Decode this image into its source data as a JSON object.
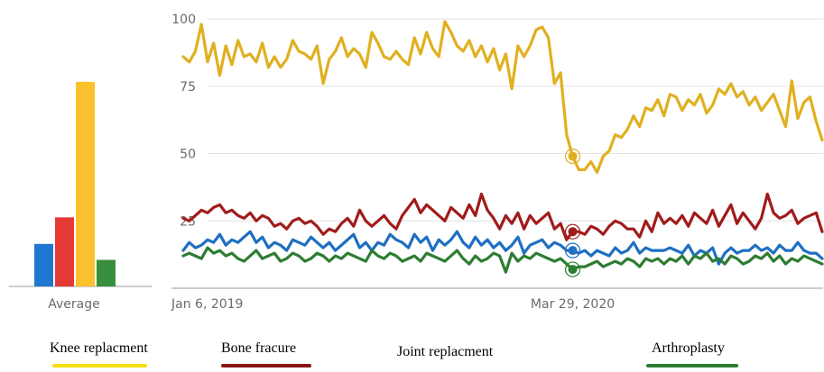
{
  "chart_data": {
    "type": "line",
    "title": "",
    "xlabel": "",
    "ylabel": "",
    "ylim": [
      0,
      100
    ],
    "y_ticks": [
      25,
      50,
      75,
      100
    ],
    "x_tick_labels": [
      "Jan 6, 2019",
      "Mar 29, 2020"
    ],
    "grid": true,
    "legend_position": "bottom",
    "average_label": "Average",
    "averages": [
      {
        "series": "Joint replacment",
        "value": 16,
        "color": "#1f77d0"
      },
      {
        "series": "Bone fracure",
        "value": 26,
        "color": "#e53935"
      },
      {
        "series": "Knee replacment",
        "value": 77,
        "color": "#fbc02d"
      },
      {
        "series": "Arthroplasty",
        "value": 10,
        "color": "#388e3c"
      }
    ],
    "highlight_index": 64,
    "series": [
      {
        "name": "Knee replacment",
        "color": "#e0b020",
        "values": [
          86,
          84,
          88,
          98,
          84,
          91,
          79,
          90,
          83,
          92,
          86,
          87,
          84,
          91,
          82,
          86,
          82,
          85,
          92,
          88,
          87,
          85,
          90,
          76,
          85,
          88,
          93,
          86,
          89,
          87,
          82,
          95,
          91,
          86,
          85,
          88,
          85,
          83,
          93,
          87,
          95,
          89,
          86,
          99,
          95,
          90,
          88,
          92,
          86,
          90,
          84,
          89,
          81,
          87,
          74,
          90,
          86,
          90,
          96,
          97,
          93,
          76,
          80,
          57,
          49,
          44,
          44,
          47,
          43,
          49,
          51,
          57,
          56,
          59,
          64,
          60,
          67,
          66,
          70,
          64,
          72,
          71,
          66,
          70,
          68,
          72,
          65,
          68,
          74,
          72,
          76,
          71,
          73,
          68,
          71,
          66,
          69,
          72,
          66,
          60,
          77,
          63,
          69,
          71,
          62,
          55
        ]
      },
      {
        "name": "Bone fracure",
        "color": "#a01c1c",
        "values": [
          26,
          25,
          27,
          29,
          28,
          30,
          31,
          28,
          29,
          27,
          26,
          28,
          25,
          27,
          26,
          23,
          24,
          22,
          25,
          26,
          24,
          25,
          23,
          20,
          22,
          21,
          24,
          26,
          23,
          29,
          25,
          23,
          25,
          27,
          24,
          22,
          27,
          30,
          33,
          28,
          31,
          29,
          27,
          25,
          30,
          28,
          26,
          31,
          27,
          35,
          29,
          26,
          22,
          27,
          24,
          28,
          22,
          27,
          24,
          26,
          28,
          22,
          24,
          18,
          21,
          21,
          20,
          23,
          22,
          20,
          23,
          25,
          24,
          22,
          22,
          19,
          25,
          21,
          28,
          24,
          26,
          24,
          27,
          23,
          28,
          26,
          24,
          29,
          23,
          27,
          31,
          24,
          28,
          25,
          22,
          26,
          35,
          28,
          26,
          27,
          29,
          24,
          26,
          27,
          28,
          21
        ]
      },
      {
        "name": "Joint replacment",
        "color": "#1f6fc2",
        "values": [
          14,
          17,
          15,
          16,
          18,
          17,
          20,
          16,
          18,
          17,
          19,
          21,
          17,
          19,
          15,
          17,
          16,
          14,
          18,
          17,
          16,
          19,
          17,
          15,
          17,
          14,
          16,
          18,
          20,
          15,
          17,
          14,
          17,
          16,
          20,
          18,
          17,
          15,
          20,
          17,
          19,
          14,
          18,
          16,
          18,
          21,
          17,
          15,
          19,
          16,
          18,
          15,
          17,
          14,
          16,
          19,
          13,
          16,
          17,
          18,
          15,
          17,
          16,
          14,
          14,
          13,
          14,
          12,
          14,
          13,
          12,
          15,
          13,
          14,
          17,
          13,
          15,
          14,
          14,
          14,
          15,
          14,
          13,
          16,
          12,
          14,
          13,
          15,
          9,
          13,
          15,
          13,
          14,
          14,
          16,
          14,
          15,
          13,
          16,
          14,
          14,
          17,
          14,
          13,
          13,
          11
        ]
      },
      {
        "name": "Arthroplasty",
        "color": "#2e7d32",
        "values": [
          12,
          13,
          12,
          11,
          15,
          13,
          14,
          12,
          13,
          11,
          10,
          12,
          14,
          11,
          12,
          13,
          10,
          11,
          13,
          12,
          10,
          11,
          13,
          12,
          10,
          12,
          11,
          13,
          12,
          11,
          10,
          14,
          12,
          11,
          13,
          12,
          10,
          11,
          12,
          10,
          13,
          12,
          11,
          10,
          12,
          14,
          11,
          9,
          12,
          10,
          11,
          13,
          12,
          6,
          13,
          10,
          12,
          11,
          13,
          12,
          11,
          10,
          11,
          9,
          7,
          8,
          8,
          9,
          10,
          8,
          9,
          10,
          9,
          11,
          10,
          8,
          11,
          10,
          11,
          9,
          11,
          10,
          12,
          9,
          12,
          11,
          13,
          10,
          11,
          9,
          12,
          11,
          9,
          10,
          12,
          11,
          13,
          10,
          12,
          9,
          11,
          10,
          12,
          11,
          10,
          9
        ]
      }
    ],
    "legend": [
      {
        "label": "Knee replacment",
        "color": "#f6e10d"
      },
      {
        "label": "Bone fracure",
        "color": "#8b1212"
      },
      {
        "label": "Joint replacment",
        "color": ""
      },
      {
        "label": "Arthroplasty",
        "color": "#2e7d32"
      }
    ]
  }
}
